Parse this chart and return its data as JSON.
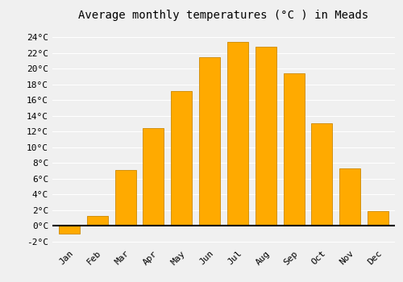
{
  "title": "Average monthly temperatures (°C ) in Meads",
  "months": [
    "Jan",
    "Feb",
    "Mar",
    "Apr",
    "May",
    "Jun",
    "Jul",
    "Aug",
    "Sep",
    "Oct",
    "Nov",
    "Dec"
  ],
  "values": [
    -1.0,
    1.2,
    7.1,
    12.4,
    17.1,
    21.5,
    23.4,
    22.8,
    19.4,
    13.0,
    7.3,
    1.9
  ],
  "bar_color": "#FFAA00",
  "bar_edge_color": "#CC8800",
  "ylim": [
    -2.5,
    25.5
  ],
  "yticks": [
    -2,
    0,
    2,
    4,
    6,
    8,
    10,
    12,
    14,
    16,
    18,
    20,
    22,
    24
  ],
  "ytick_labels": [
    "-2°C",
    "0°C",
    "2°C",
    "4°C",
    "6°C",
    "8°C",
    "10°C",
    "12°C",
    "14°C",
    "16°C",
    "18°C",
    "20°C",
    "22°C",
    "24°C"
  ],
  "background_color": "#f0f0f0",
  "grid_color": "#ffffff",
  "zero_line_color": "#000000",
  "title_fontsize": 10,
  "tick_fontsize": 8,
  "bar_width": 0.75
}
